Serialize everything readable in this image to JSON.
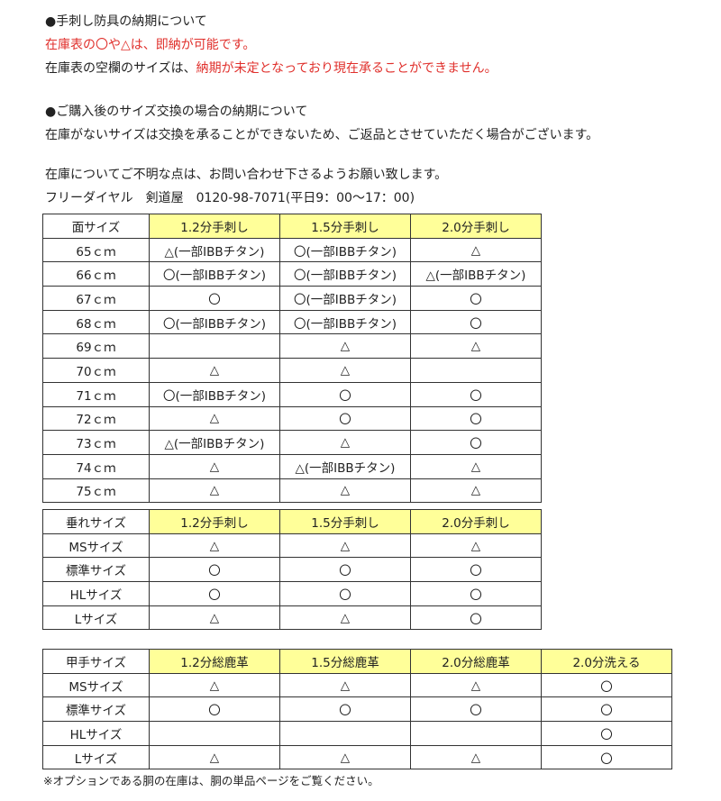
{
  "notes": {
    "h1": "●手刺し防具の納期について",
    "l1": "在庫表の〇や△は、即納が可能です。",
    "l2a": "在庫表の空欄のサイズは、",
    "l2b": "納期が未定となっており現在承ることができません。",
    "h2": "●ご購入後のサイズ交換の場合の納期について",
    "l3": "在庫がないサイズは交換を承ることができないため、ご返品とさせていただく場合がございます。",
    "l4": "在庫についてご不明な点は、お問い合わせ下さるようお願い致します。",
    "l5": "フリーダイヤル　剣道屋　0120-98-7071(平日9：00～17：00)",
    "footer": "※オプションである胴の在庫は、胴の単品ページをご覧ください。"
  },
  "colors": {
    "accent_red": "#e0302c",
    "header_yellow": "#ffff99"
  },
  "tables": [
    {
      "headers": [
        "面サイズ",
        "1.2分手刺し",
        "1.5分手刺し",
        "2.0分手刺し"
      ],
      "rows": [
        [
          "65ｃｍ",
          "△(一部IBBチタン)",
          "〇(一部IBBチタン)",
          "△"
        ],
        [
          "66ｃｍ",
          "〇(一部IBBチタン)",
          "〇(一部IBBチタン)",
          "△(一部IBBチタン)"
        ],
        [
          "67ｃｍ",
          "〇",
          "〇(一部IBBチタン)",
          "〇"
        ],
        [
          "68ｃｍ",
          "〇(一部IBBチタン)",
          "〇(一部IBBチタン)",
          "〇"
        ],
        [
          "69ｃｍ",
          "",
          "△",
          "△"
        ],
        [
          "70ｃｍ",
          "△",
          "△",
          ""
        ],
        [
          "71ｃｍ",
          "〇(一部IBBチタン)",
          "〇",
          "〇"
        ],
        [
          "72ｃｍ",
          "△",
          "〇",
          "〇"
        ],
        [
          "73ｃｍ",
          "△(一部IBBチタン)",
          "△",
          "〇"
        ],
        [
          "74ｃｍ",
          "△",
          "△(一部IBBチタン)",
          "△"
        ],
        [
          "75ｃｍ",
          "△",
          "△",
          "△"
        ]
      ]
    },
    {
      "headers": [
        "垂れサイズ",
        "1.2分手刺し",
        "1.5分手刺し",
        "2.0分手刺し"
      ],
      "rows": [
        [
          "MSサイズ",
          "△",
          "△",
          "△"
        ],
        [
          "標準サイズ",
          "〇",
          "〇",
          "〇"
        ],
        [
          "HLサイズ",
          "〇",
          "〇",
          "〇"
        ],
        [
          "Lサイズ",
          "△",
          "△",
          "〇"
        ]
      ]
    },
    {
      "headers": [
        "甲手サイズ",
        "1.2分総鹿革",
        "1.5分総鹿革",
        "2.0分総鹿革",
        "2.0分洗える"
      ],
      "rows": [
        [
          "MSサイズ",
          "△",
          "△",
          "△",
          "〇"
        ],
        [
          "標準サイズ",
          "〇",
          "〇",
          "〇",
          "〇"
        ],
        [
          "HLサイズ",
          "",
          "",
          "",
          "〇"
        ],
        [
          "Lサイズ",
          "△",
          "△",
          "△",
          "〇"
        ]
      ]
    }
  ]
}
